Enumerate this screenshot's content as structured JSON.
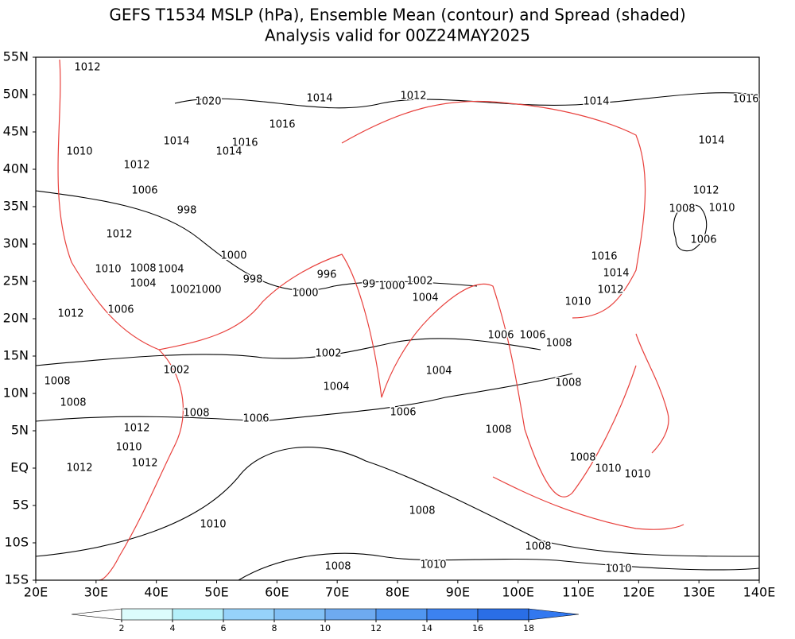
{
  "header": {
    "title": "GEFS T1534 MSLP (hPa), Ensemble Mean (contour) and Spread (shaded)",
    "subtitle": "Analysis valid for 00Z24MAY2025"
  },
  "map": {
    "lat_labels": [
      "55N",
      "50N",
      "45N",
      "40N",
      "35N",
      "30N",
      "25N",
      "20N",
      "15N",
      "10N",
      "5N",
      "EQ",
      "5S",
      "10S",
      "15S"
    ],
    "lon_labels": [
      "20E",
      "30E",
      "40E",
      "50E",
      "60E",
      "70E",
      "80E",
      "90E",
      "100E",
      "110E",
      "120E",
      "130E",
      "140E"
    ],
    "contour_labels": [
      "1012",
      "1020",
      "1014",
      "1012",
      "1014",
      "1016",
      "1016",
      "1014",
      "1016",
      "1014",
      "1010",
      "1012",
      "1014",
      "1006",
      "998",
      "1012",
      "1008",
      "1010",
      "1012",
      "1006",
      "1000",
      "1016",
      "1010",
      "1008",
      "1004",
      "998",
      "996",
      "1014",
      "1004",
      "1002",
      "1000",
      "1000",
      "99",
      "1000",
      "1002",
      "1004",
      "1012",
      "1010",
      "1006",
      "1012",
      "1006",
      "1006",
      "1008",
      "1002",
      "1004",
      "1002",
      "1008",
      "1004",
      "1008",
      "1008",
      "1008",
      "1006",
      "1006",
      "1012",
      "1008",
      "1010",
      "1012",
      "1012",
      "1008",
      "1010",
      "1010",
      "1008",
      "1010",
      "1008",
      "1008",
      "1010",
      "1010"
    ]
  },
  "colorbar": {
    "ticks": [
      2,
      4,
      6,
      8,
      10,
      12,
      14,
      16,
      18
    ],
    "colors": [
      "#ffffff",
      "#dcfcfc",
      "#b4f0fa",
      "#96d2fa",
      "#82c0f5",
      "#6eaaf0",
      "#5096f0",
      "#3c82f0",
      "#2a6ee6",
      "#3278f0"
    ]
  }
}
